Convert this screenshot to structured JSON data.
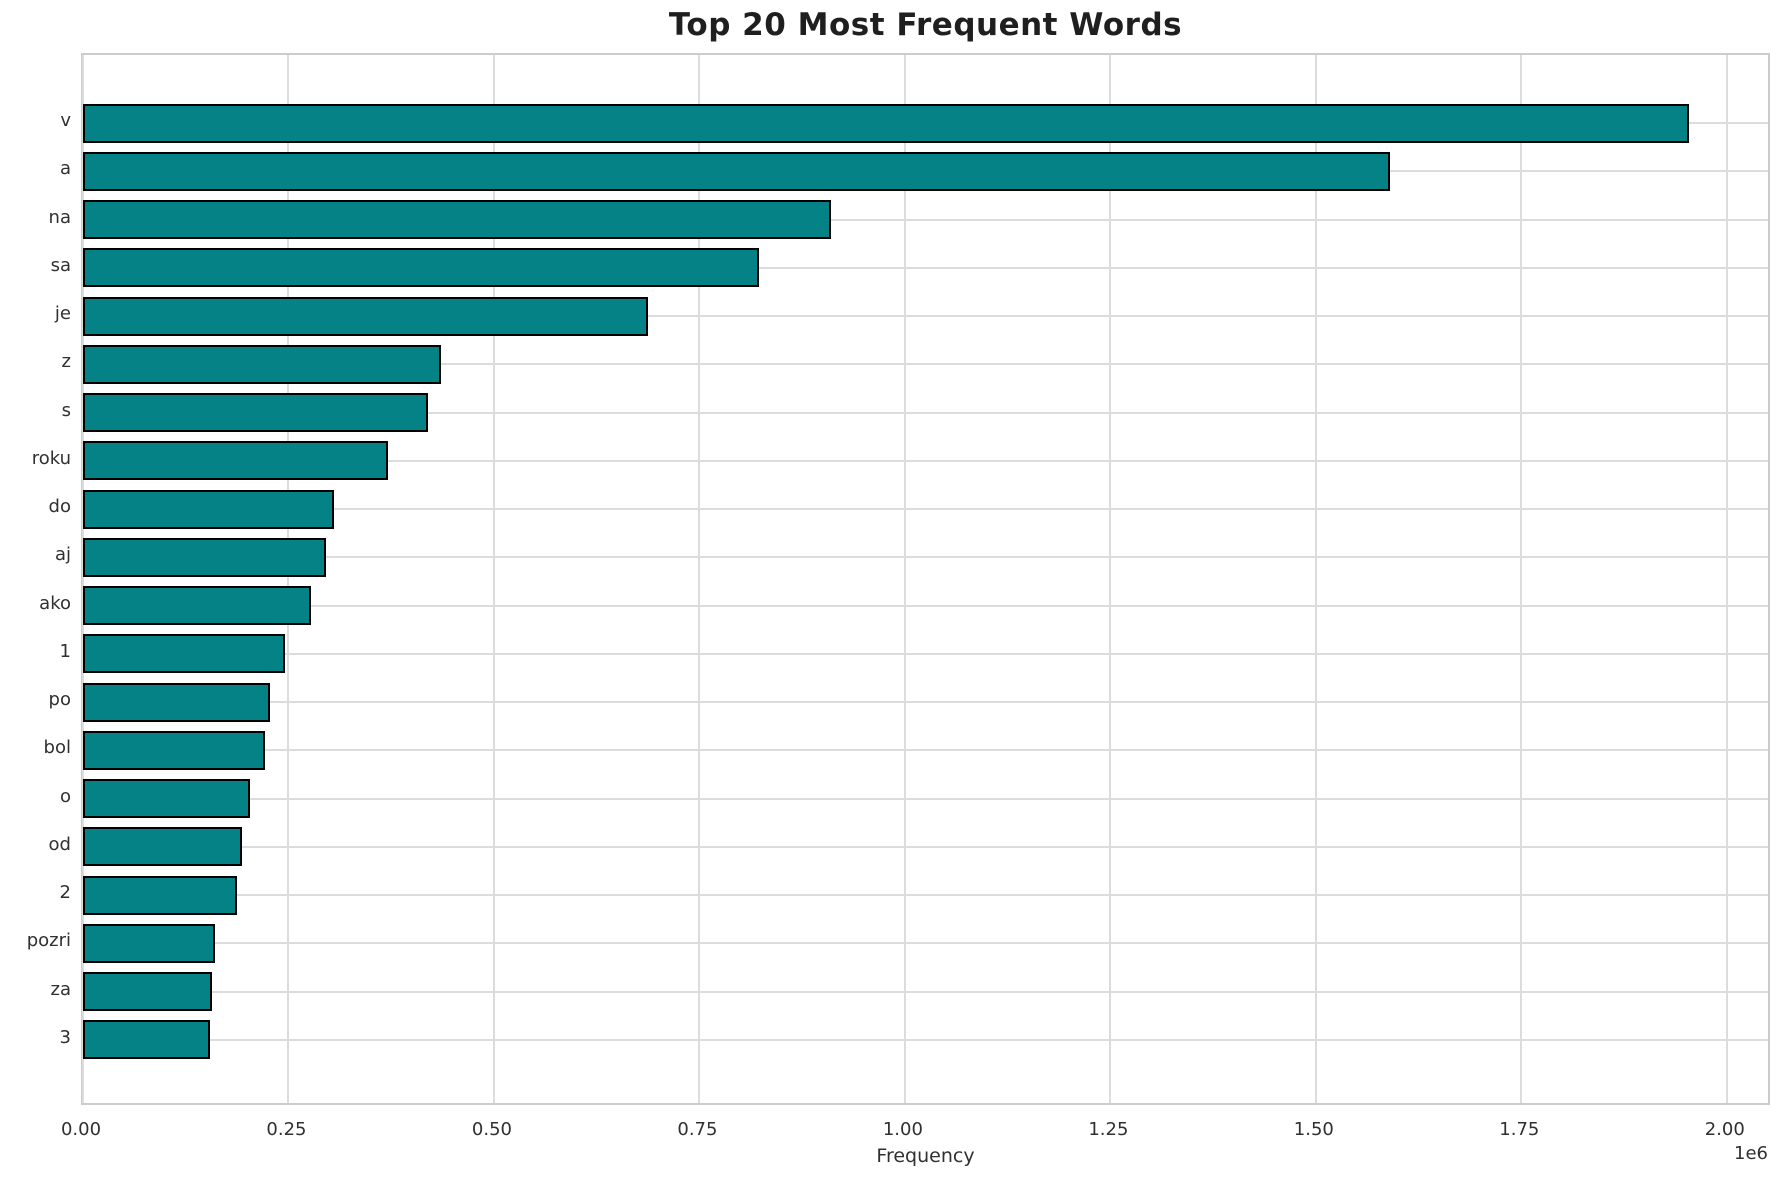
{
  "chart_data": {
    "type": "bar",
    "orientation": "horizontal",
    "title": "Top 20 Most Frequent Words",
    "xlabel": "Frequency",
    "ylabel": "",
    "offset_label": "1e6",
    "categories": [
      "v",
      "a",
      "na",
      "sa",
      "je",
      "z",
      "s",
      "roku",
      "do",
      "aj",
      "ako",
      "1",
      "po",
      "bol",
      "o",
      "od",
      "2",
      "pozri",
      "za",
      "3"
    ],
    "values": [
      1954000,
      1590000,
      910000,
      823000,
      688000,
      436000,
      420000,
      371000,
      305000,
      296000,
      277000,
      246000,
      228000,
      222000,
      203000,
      193000,
      187000,
      161000,
      157000,
      154000
    ],
    "xlim": [
      0,
      2055000
    ],
    "xticks": [
      0,
      250000,
      500000,
      750000,
      1000000,
      1250000,
      1500000,
      1750000,
      2000000
    ],
    "xtick_labels": [
      "0.00",
      "0.25",
      "0.50",
      "0.75",
      "1.00",
      "1.25",
      "1.50",
      "1.75",
      "2.00"
    ],
    "grid": true,
    "legend": false,
    "bar_color": "#058286",
    "bar_edge_color": "#000000",
    "grid_color": "#dcdcdc",
    "background_color": "#ffffff"
  }
}
